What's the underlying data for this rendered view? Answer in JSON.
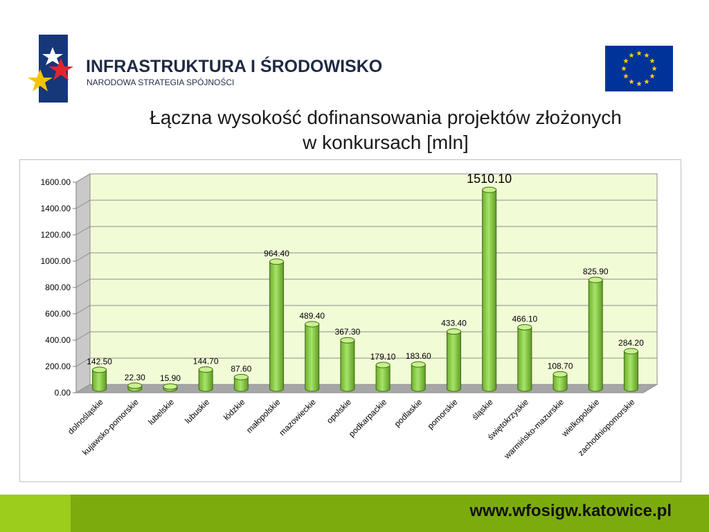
{
  "header": {
    "logo_title": "INFRASTRUKTURA I ŚRODOWISKO",
    "logo_subtitle": "NARODOWA STRATEGIA SPÓJNOŚCI"
  },
  "title_line1": "Łączna wysokość dofinansowania projektów złożonych",
  "title_line2": "w konkursach [mln]",
  "footer": {
    "url": "www.wfosigw.katowice.pl"
  },
  "colors": {
    "bar": "#a6e46a",
    "plot_background": "#f1fbd6",
    "footer_green": "#7cab0e",
    "footer_light_green": "#9ccd1d",
    "eu_blue": "#003399",
    "eu_star": "#ffcc00"
  },
  "chart_data": {
    "type": "bar",
    "title": "Łączna wysokość dofinansowania projektów złożonych w konkursach [mln]",
    "xlabel": "",
    "ylabel": "",
    "ylim": [
      0,
      1600
    ],
    "yticks": [
      "0.00",
      "200.00",
      "400.00",
      "600.00",
      "800.00",
      "1000.00",
      "1200.00",
      "1400.00",
      "1600.00"
    ],
    "grid": true,
    "legend": "none",
    "categories": [
      "dolnośląskie",
      "kujawsko-pomorskie",
      "lubelskie",
      "lubuskie",
      "łódzkie",
      "małopolskie",
      "mazowieckie",
      "opolskie",
      "podkarpackie",
      "podlaskie",
      "pomorskie",
      "śląskie",
      "świętokrzyskie",
      "warmińsko-mazurskie",
      "wielkopolskie",
      "zachodniopomorskie"
    ],
    "values": [
      142.5,
      22.3,
      15.9,
      144.7,
      87.6,
      964.4,
      489.4,
      367.3,
      179.1,
      183.6,
      433.4,
      1510.1,
      466.1,
      108.7,
      825.9,
      284.2
    ],
    "labels": [
      "142.50",
      "22.30",
      "15.90",
      "144.70",
      "87.60",
      "964.40",
      "489.40",
      "367.30",
      "179.10",
      "183.60",
      "433.40",
      "1510.10",
      "466.10",
      "108.70",
      "825.90",
      "284.20"
    ]
  }
}
